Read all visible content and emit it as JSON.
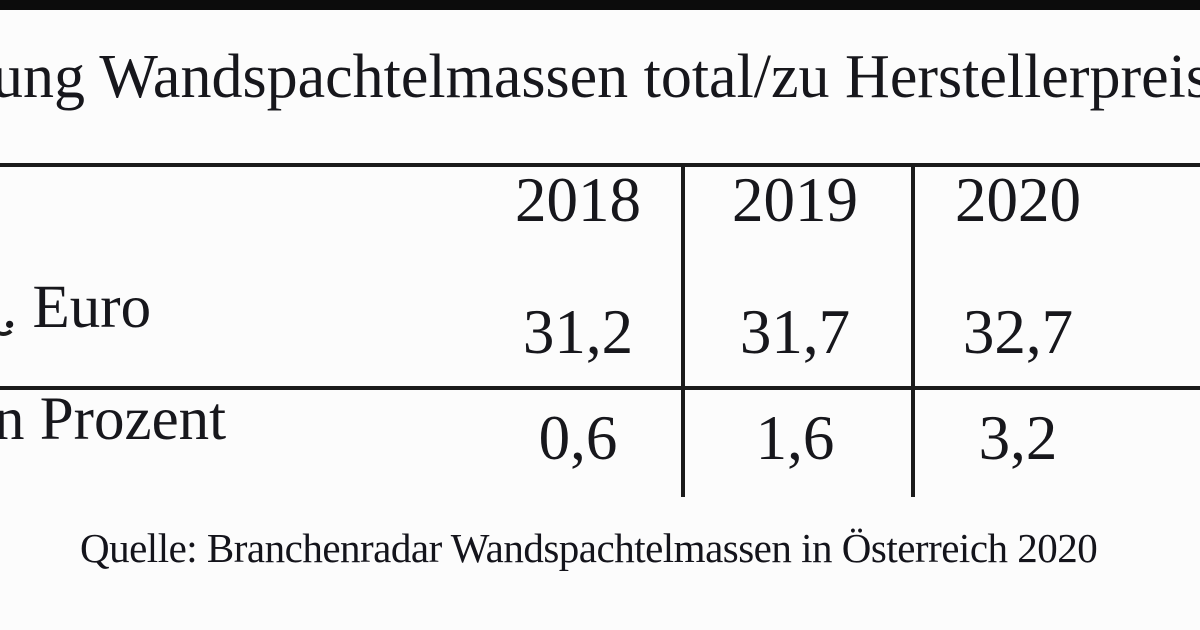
{
  "colors": {
    "background": "#fcfcfc",
    "text": "#17171c",
    "line": "#1b1b1b",
    "top_bar": "#0c0c0c"
  },
  "title": {
    "visible_text": "ung Wandspachtelmassen total/zu Herstellerpreis"
  },
  "table": {
    "years": [
      "2018",
      "2019",
      "2020"
    ],
    "rows": [
      {
        "label": ". Euro",
        "values": [
          "31,2",
          "31,7",
          "32,7"
        ]
      },
      {
        "label": "n Prozent",
        "values": [
          "0,6",
          "1,6",
          "3,2"
        ]
      }
    ]
  },
  "source": {
    "text": "Quelle: Branchenradar Wandspachtelmassen in Österreich 2020"
  },
  "chart_data": {
    "type": "table",
    "title": "ung Wandspachtelmassen total/zu Herstellerpreis",
    "categories": [
      "2018",
      "2019",
      "2020"
    ],
    "series": [
      {
        "name": ". Euro",
        "values": [
          31.2,
          31.7,
          32.7
        ],
        "display": [
          "31,2",
          "31,7",
          "32,7"
        ]
      },
      {
        "name": "n Prozent",
        "values": [
          0.6,
          1.6,
          3.2
        ],
        "display": [
          "0,6",
          "1,6",
          "3,2"
        ]
      }
    ],
    "source": "Quelle: Branchenradar Wandspachtelmassen in Österreich 2020",
    "layout": {
      "grid": "partial-rules",
      "legend": "none",
      "value_format": "decimal-comma"
    }
  }
}
